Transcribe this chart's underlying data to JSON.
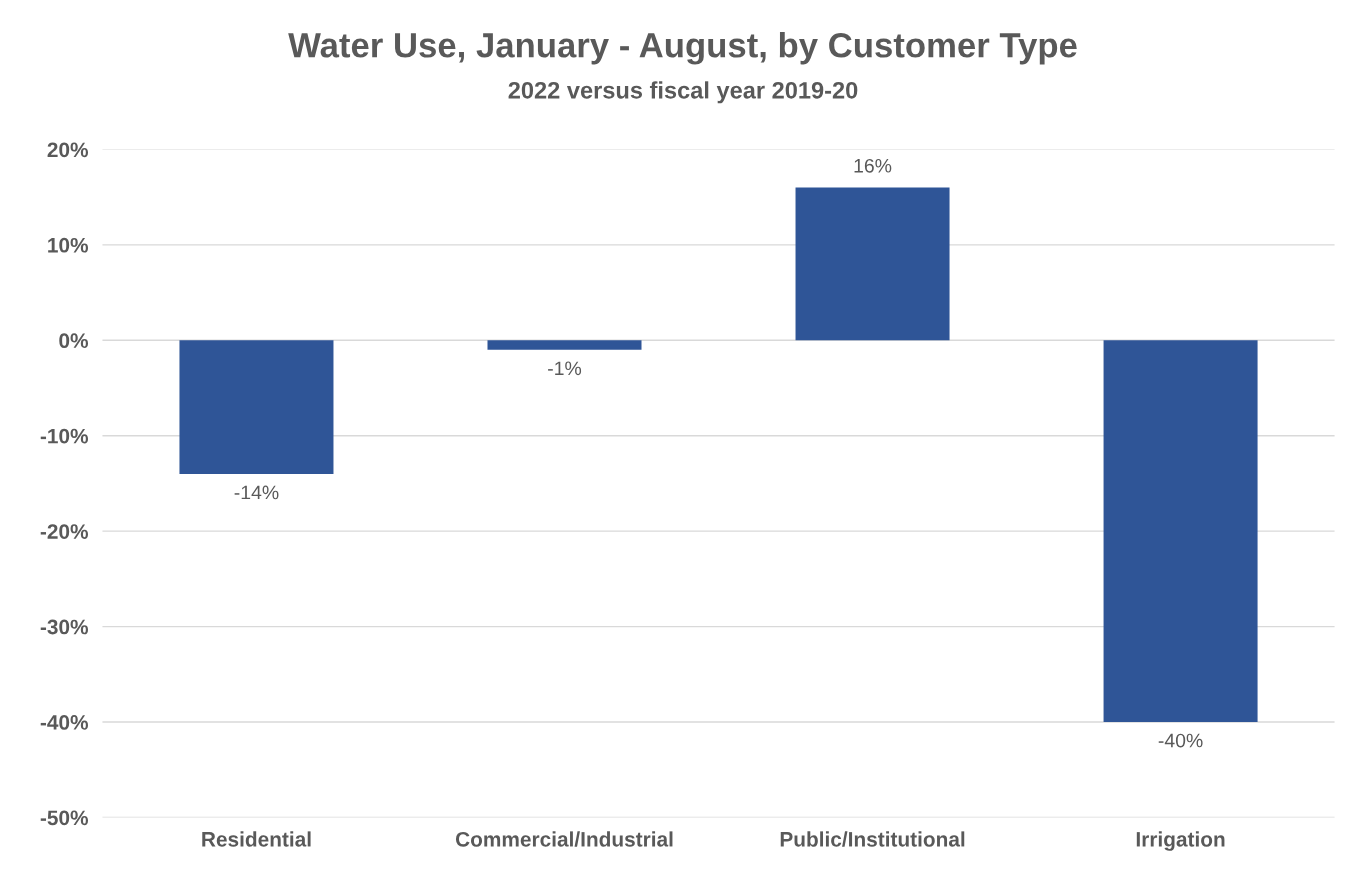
{
  "chart_data": {
    "type": "bar",
    "title": "Water Use, January - August, by Customer Type",
    "subtitle": "2022 versus fiscal year 2019-20",
    "categories": [
      "Residential",
      "Commercial/Industrial",
      "Public/Institutional",
      "Irrigation"
    ],
    "values": [
      -14,
      -1,
      16,
      -40
    ],
    "color": "#2f5597",
    "value_labels": [
      "-14%",
      "-1%",
      "16%",
      "-40%"
    ],
    "ylim": [
      -50,
      20
    ],
    "yticks": [
      {
        "value": -50,
        "label": "-50%"
      },
      {
        "value": -40,
        "label": "-40%"
      },
      {
        "value": -30,
        "label": "-30%"
      },
      {
        "value": -20,
        "label": "-20%"
      },
      {
        "value": -10,
        "label": "-10%"
      },
      {
        "value": 0,
        "label": "0%"
      },
      {
        "value": 10,
        "label": "10%"
      },
      {
        "value": 20,
        "label": "20%"
      }
    ],
    "grid": "y"
  }
}
